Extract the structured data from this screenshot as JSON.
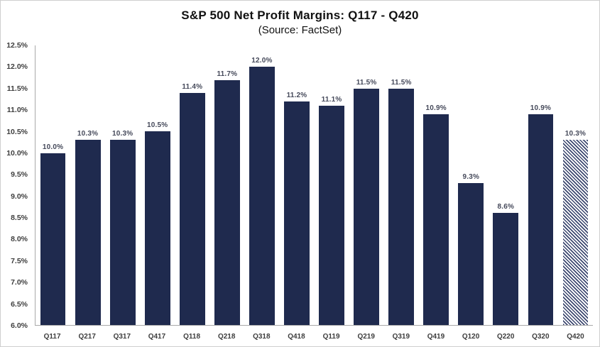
{
  "chart_data": {
    "type": "bar",
    "title": "S&P 500 Net Profit Margins: Q117 - Q420",
    "subtitle": "(Source: FactSet)",
    "categories": [
      "Q117",
      "Q217",
      "Q317",
      "Q417",
      "Q118",
      "Q218",
      "Q318",
      "Q418",
      "Q119",
      "Q219",
      "Q319",
      "Q419",
      "Q120",
      "Q220",
      "Q320",
      "Q420"
    ],
    "values": [
      10.0,
      10.3,
      10.3,
      10.5,
      11.4,
      11.7,
      12.0,
      11.2,
      11.1,
      11.5,
      11.5,
      10.9,
      9.3,
      8.6,
      10.9,
      10.3
    ],
    "value_labels": [
      "10.0%",
      "10.3%",
      "10.3%",
      "10.5%",
      "11.4%",
      "11.7%",
      "12.0%",
      "11.2%",
      "11.1%",
      "11.5%",
      "11.5%",
      "10.9%",
      "9.3%",
      "8.6%",
      "10.9%",
      "10.3%"
    ],
    "hatched_index": 15,
    "ylim": [
      6.0,
      12.5
    ],
    "yticks": [
      {
        "value": 12.5,
        "label": "12.5%"
      },
      {
        "value": 12.0,
        "label": "12.0%"
      },
      {
        "value": 11.5,
        "label": "11.5%"
      },
      {
        "value": 11.0,
        "label": "11.0%"
      },
      {
        "value": 10.5,
        "label": "10.5%"
      },
      {
        "value": 10.0,
        "label": "10.0%"
      },
      {
        "value": 9.5,
        "label": "9.5%"
      },
      {
        "value": 9.0,
        "label": "9.0%"
      },
      {
        "value": 8.5,
        "label": "8.5%"
      },
      {
        "value": 8.0,
        "label": "8.0%"
      },
      {
        "value": 7.5,
        "label": "7.5%"
      },
      {
        "value": 7.0,
        "label": "7.0%"
      },
      {
        "value": 6.5,
        "label": "6.5%"
      },
      {
        "value": 6.0,
        "label": "6.0%"
      }
    ],
    "grid": false,
    "legend": "none",
    "bar_color": "#1F2A4E",
    "hatch_color": "#3d4870",
    "axis_line_color": "#a9a9a9"
  }
}
